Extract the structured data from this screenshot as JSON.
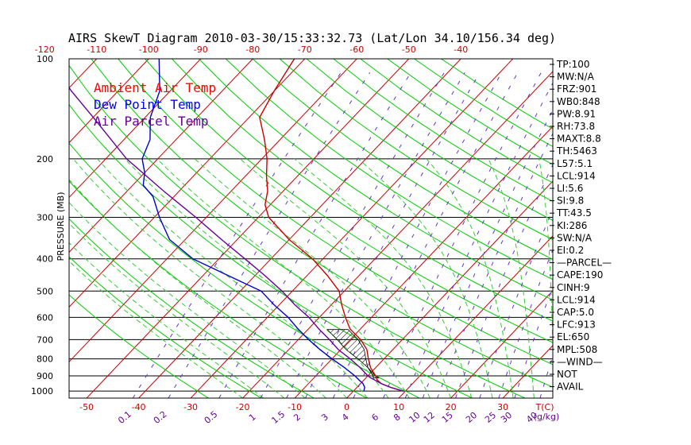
{
  "chart_data": {
    "type": "line",
    "subtype": "skewT-logP",
    "title": "AIRS SkewT Diagram 2010-03-30/15:33:32.73 (Lat/Lon 34.10/156.34 deg)",
    "ylabel": "PRESSURE (MB)",
    "xlabel": "T(C)",
    "mixing_ratio_label": "(g/kg)",
    "ylim": [
      1050,
      100
    ],
    "pressure_ticks": [
      100,
      200,
      300,
      400,
      500,
      600,
      700,
      800,
      900,
      1000
    ],
    "top_temp_ticks": [
      -120,
      -110,
      -100,
      -90,
      -80,
      -70,
      -60,
      -50,
      -40
    ],
    "bottom_temp_ticks": [
      -50,
      -40,
      -30,
      -20,
      -10,
      0,
      10,
      20,
      30
    ],
    "mixing_ratio_ticks": [
      "0.1",
      "0.2",
      "0.5",
      "1",
      "1.5",
      "2",
      "3",
      "4",
      "6",
      "8",
      "10",
      "12",
      "15",
      "20",
      "25",
      "30",
      "40"
    ],
    "legend": [
      {
        "name": "Ambient Air Temp",
        "color": "#ff0000"
      },
      {
        "name": "Dew Point Temp",
        "color": "#0000ff"
      },
      {
        "name": "Air Parcel Temp",
        "color": "#660099"
      }
    ],
    "series": [
      {
        "name": "Ambient Air Temp",
        "color": "#cc0000",
        "points": [
          [
            1000,
            9.5
          ],
          [
            975,
            6.5
          ],
          [
            950,
            4
          ],
          [
            925,
            2.5
          ],
          [
            900,
            1.5
          ],
          [
            850,
            -1
          ],
          [
            800,
            -3
          ],
          [
            750,
            -5
          ],
          [
            700,
            -8
          ],
          [
            650,
            -12
          ],
          [
            600,
            -15
          ],
          [
            550,
            -18
          ],
          [
            500,
            -21
          ],
          [
            450,
            -26
          ],
          [
            400,
            -32
          ],
          [
            350,
            -40
          ],
          [
            300,
            -48
          ],
          [
            275,
            -51
          ],
          [
            250,
            -53
          ],
          [
            225,
            -56
          ],
          [
            200,
            -59
          ],
          [
            175,
            -63
          ],
          [
            150,
            -68
          ],
          [
            125,
            -70
          ],
          [
            100,
            -72
          ]
        ]
      },
      {
        "name": "Dew Point Temp",
        "color": "#0000cc",
        "points": [
          [
            1000,
            2
          ],
          [
            975,
            1.5
          ],
          [
            950,
            0.5
          ],
          [
            925,
            -1
          ],
          [
            900,
            -2.5
          ],
          [
            850,
            -6
          ],
          [
            800,
            -10
          ],
          [
            750,
            -14
          ],
          [
            700,
            -18
          ],
          [
            650,
            -22
          ],
          [
            600,
            -26
          ],
          [
            550,
            -31
          ],
          [
            500,
            -36
          ],
          [
            450,
            -45
          ],
          [
            400,
            -55
          ],
          [
            350,
            -63
          ],
          [
            300,
            -69
          ],
          [
            260,
            -74
          ],
          [
            240,
            -78
          ],
          [
            220,
            -80
          ],
          [
            200,
            -83
          ],
          [
            175,
            -85
          ],
          [
            150,
            -89
          ],
          [
            125,
            -92
          ],
          [
            100,
            -98
          ]
        ]
      },
      {
        "name": "Air Parcel Temp",
        "color": "#660099",
        "points": [
          [
            1000,
            9.5
          ],
          [
            975,
            6.5
          ],
          [
            950,
            4
          ],
          [
            925,
            2
          ],
          [
            914,
            1
          ],
          [
            900,
            0
          ],
          [
            850,
            -3
          ],
          [
            800,
            -6.5
          ],
          [
            750,
            -10.5
          ],
          [
            700,
            -14
          ],
          [
            650,
            -18
          ],
          [
            600,
            -22
          ],
          [
            550,
            -27
          ],
          [
            500,
            -32
          ],
          [
            450,
            -38
          ],
          [
            400,
            -45
          ],
          [
            350,
            -53
          ],
          [
            300,
            -62
          ],
          [
            250,
            -73
          ],
          [
            200,
            -86
          ],
          [
            150,
            -100
          ],
          [
            125,
            -109
          ],
          [
            100,
            -119
          ]
        ]
      }
    ]
  },
  "indices": [
    "TP:100",
    "MW:N/A",
    "FRZ:901",
    "WB0:848",
    "PW:8.91",
    "RH:73.8",
    "MAXT:8.8",
    "TH:5463",
    "L57:5.1",
    "LCL:914",
    "LI:5.6",
    "SI:9.8",
    "TT:43.5",
    "KI:286",
    "SW:N/A",
    "EI:0.2",
    "—PARCEL—",
    "CAPE:190",
    "CINH:9",
    "LCL:914",
    "CAP:5.0",
    "LFC:913",
    "EL:650",
    "MPL:508",
    "—WIND—",
    "NOT",
    "AVAIL"
  ],
  "colors": {
    "axis": "#000000",
    "isobar": "#000000",
    "isotherm": "#cc0000",
    "dry_adiabat": "#00cc00",
    "moist_adiabat": "#33cc33",
    "mixing_ratio": "#6633cc",
    "red_label": "#cc0000",
    "purple_label": "#660099"
  }
}
